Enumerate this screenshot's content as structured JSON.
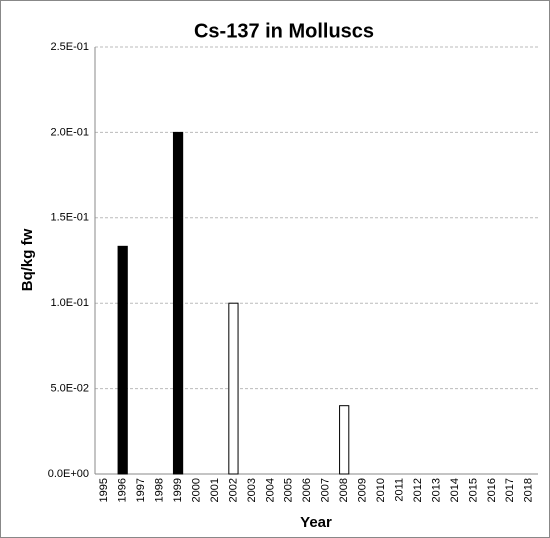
{
  "chart_data": {
    "type": "bar",
    "title": "Cs-137 in Molluscs",
    "x_label": "Year",
    "y_label": "Bq/kg fw",
    "categories": [
      "1995",
      "1996",
      "1997",
      "1998",
      "1999",
      "2000",
      "2001",
      "2002",
      "2003",
      "2004",
      "2005",
      "2006",
      "2007",
      "2008",
      "2009",
      "2010",
      "2011",
      "2012",
      "2013",
      "2014",
      "2015",
      "2016",
      "2017",
      "2018"
    ],
    "series": [
      {
        "color": "#000000",
        "values": [
          null,
          0.1333,
          null,
          null,
          0.2,
          null,
          null,
          null,
          null,
          null,
          null,
          null,
          null,
          null,
          null,
          null,
          null,
          null,
          null,
          null,
          null,
          null,
          null,
          null
        ]
      },
      {
        "color": "#ffffff",
        "values": [
          null,
          null,
          null,
          null,
          null,
          null,
          null,
          0.1,
          null,
          null,
          null,
          null,
          null,
          0.04,
          null,
          null,
          null,
          null,
          null,
          null,
          null,
          null,
          null,
          null
        ]
      }
    ],
    "ylim": [
      0,
      0.25
    ],
    "yticks": [
      {
        "value": 0,
        "label": "0.0E+00"
      },
      {
        "value": 0.05,
        "label": "5.0E-02"
      },
      {
        "value": 0.1,
        "label": "1.0E-01"
      },
      {
        "value": 0.15,
        "label": "1.5E-01"
      },
      {
        "value": 0.2,
        "label": "2.0E-01"
      },
      {
        "value": 0.25,
        "label": "2.5E-01"
      }
    ],
    "grid": true
  }
}
